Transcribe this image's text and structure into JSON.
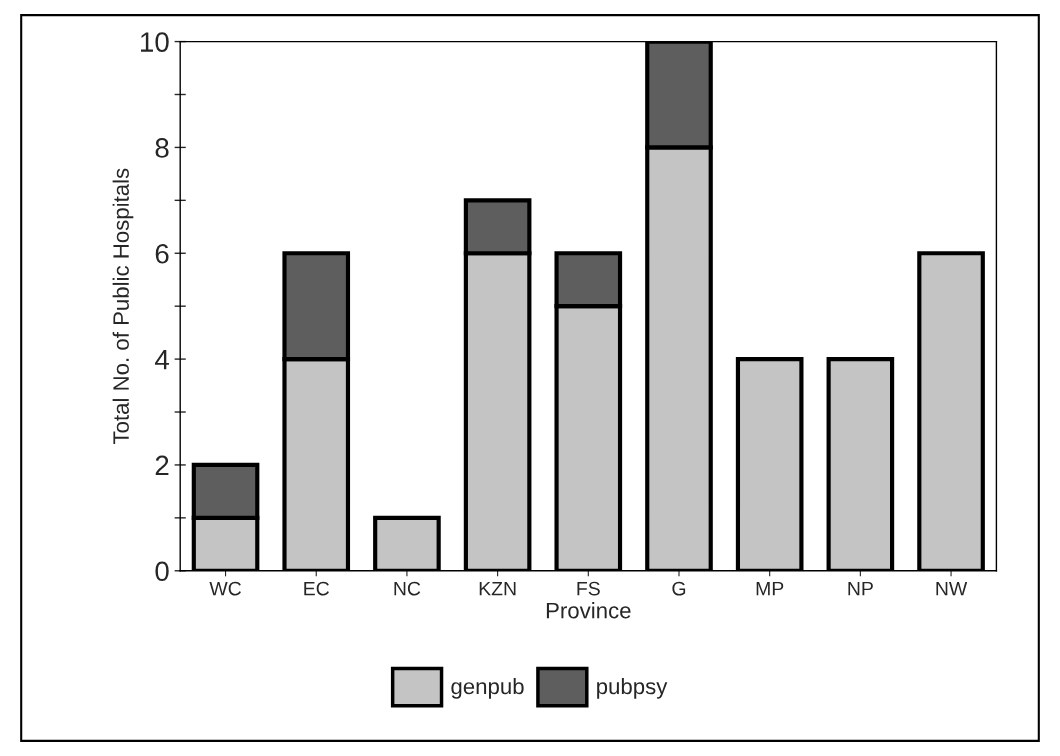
{
  "chart_data": {
    "type": "bar",
    "xlabel": "Province",
    "ylabel": "Total No. of Public Hospitals",
    "categories": [
      "WC",
      "EC",
      "NC",
      "KZN",
      "FS",
      "G",
      "MP",
      "NP",
      "NW"
    ],
    "stacked": true,
    "series": [
      {
        "name": "genpub",
        "color": "#c4c4c4",
        "values": [
          1,
          4,
          1,
          6,
          5,
          8,
          4,
          4,
          6
        ]
      },
      {
        "name": "pubpsy",
        "color": "#5e5e5e",
        "values": [
          1,
          2,
          0,
          1,
          1,
          2,
          0,
          0,
          0
        ]
      }
    ],
    "ylim": [
      0,
      10
    ],
    "yticks": [
      0,
      {
        "value": 1,
        "label": null
      },
      2,
      {
        "value": 3,
        "label": null
      },
      4,
      {
        "value": 5,
        "label": null
      },
      6,
      {
        "value": 7,
        "label": null
      },
      8,
      {
        "value": 9,
        "label": null
      },
      10
    ],
    "grid": false,
    "legend": "bottom"
  }
}
